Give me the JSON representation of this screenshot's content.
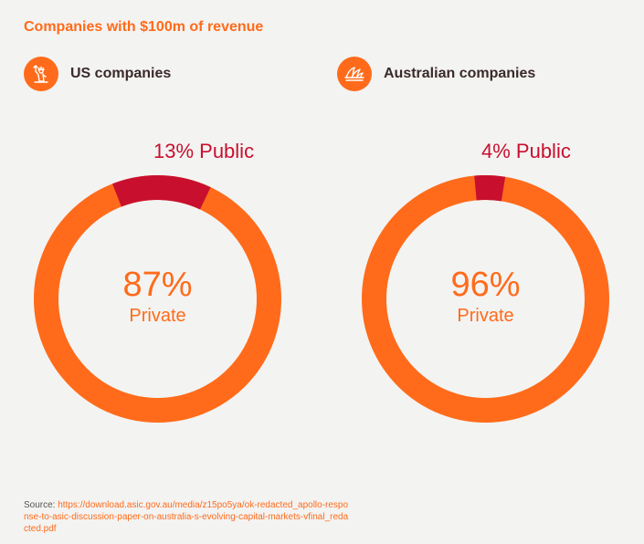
{
  "header": {
    "title": "Companies with $100m of revenue"
  },
  "legend": [
    {
      "label": "US companies",
      "icon": "statue-of-liberty-icon"
    },
    {
      "label": "Australian companies",
      "icon": "opera-house-icon"
    }
  ],
  "chart_data": [
    {
      "type": "pie",
      "title": "US companies",
      "categories": [
        "Public",
        "Private"
      ],
      "values": [
        13,
        87
      ],
      "public_label": "13% Public",
      "center_value": "87%",
      "center_label": "Private"
    },
    {
      "type": "pie",
      "title": "Australian companies",
      "categories": [
        "Public",
        "Private"
      ],
      "values": [
        4,
        96
      ],
      "public_label": "4% Public",
      "center_value": "96%",
      "center_label": "Private"
    }
  ],
  "colors": {
    "accent": "#ff6b1a",
    "public": "#c8102e",
    "text": "#3a2a2a"
  },
  "source": {
    "prefix": "Source: ",
    "url": "https://download.asic.gov.au/media/z15po5ya/ok-redacted_apollo-response-to-asic-discussion-paper-on-australia-s-evolving-capital-markets-vfinal_redacted.pdf"
  }
}
